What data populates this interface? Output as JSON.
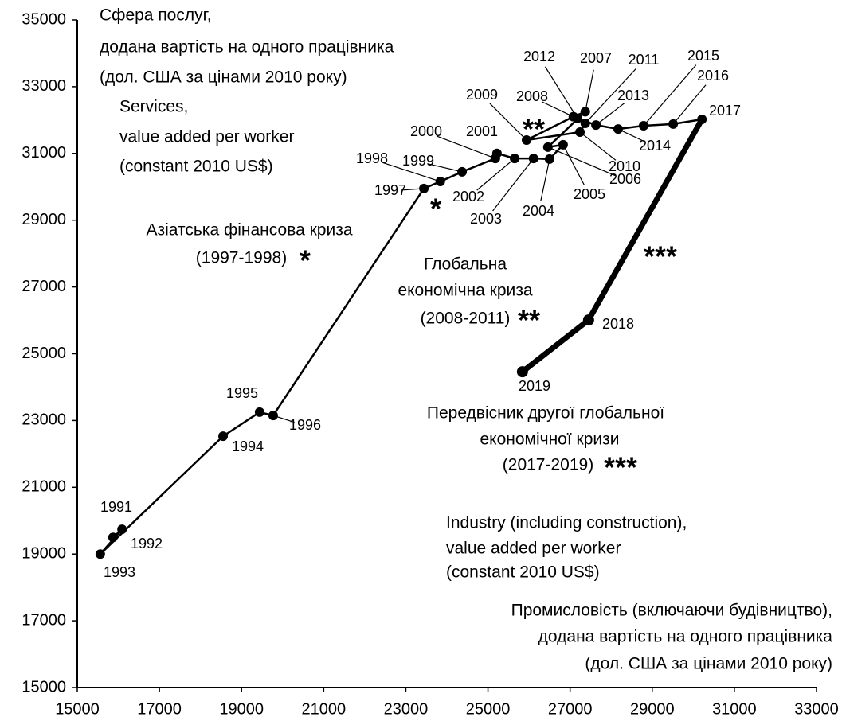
{
  "chart_data": {
    "type": "line",
    "annotations": [
      "Сфера послуг,",
      "додана вартість на одного працівника",
      "(дол. США за цінами 2010 року)",
      "Services,",
      "value added per worker",
      "(constant 2010 US$)",
      "Азіатська фінансова криза",
      "(1997-1998)",
      "*",
      "Глобальна",
      "економічна криза",
      "(2008-2011)",
      "**",
      "Передвісник другої глобальної",
      "економічної кризи",
      "(2017-2019)",
      "***",
      "Industry (including construction),",
      "value added per worker",
      "(constant 2010 US$)",
      "Промисловість (включаючи будівництво),",
      "додана вартість на одного працівника",
      "(дол. США за цінами 2010 року)",
      "*",
      "**",
      "***"
    ],
    "series": [
      {
        "color": "#000000",
        "width": 2.5,
        "labels": [
          "1991",
          "1992",
          "1993",
          "1994",
          "1995",
          "1996",
          "1997",
          "1998",
          "1999",
          "2000",
          "2001",
          "2002",
          "2003",
          "2004",
          "2005",
          "2006",
          "2007",
          "2008",
          "2009",
          "2010",
          "2011",
          "2012",
          "2013",
          "2014",
          "2015",
          "2016",
          "2017"
        ],
        "x": [
          15870,
          16090,
          15560,
          18550,
          19440,
          19770,
          23440,
          23840,
          24370,
          25180,
          25220,
          25650,
          26110,
          26500,
          26830,
          26460,
          27370,
          27080,
          25940,
          27240,
          27370,
          27180,
          27630,
          28170,
          28790,
          29510,
          30210
        ],
        "y": [
          19500,
          19740,
          19000,
          22530,
          23250,
          23150,
          29950,
          30160,
          30450,
          30850,
          31000,
          30850,
          30850,
          30830,
          31260,
          31190,
          32250,
          32100,
          31400,
          31640,
          31900,
          32050,
          31850,
          31730,
          31830,
          31880,
          32020
        ]
      },
      {
        "color": "#000000",
        "width": 7,
        "labels": [
          "2018",
          "2019"
        ],
        "x": [
          27450,
          25840
        ],
        "y": [
          26010,
          24460
        ]
      }
    ],
    "xlim": [
      15000,
      33000
    ],
    "xticks": [
      15000,
      17000,
      19000,
      21000,
      23000,
      25000,
      27000,
      29000,
      31000,
      33000
    ],
    "ylim": [
      15000,
      35000
    ],
    "yticks": [
      15000,
      17000,
      19000,
      21000,
      23000,
      25000,
      27000,
      29000,
      31000,
      33000,
      35000
    ],
    "grid": false
  }
}
